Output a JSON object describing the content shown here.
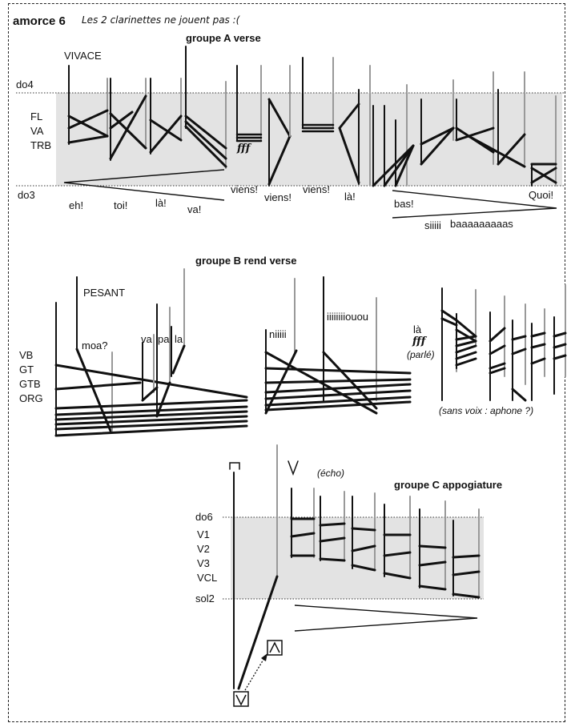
{
  "header": {
    "title": "amorce 6",
    "note": "Les 2 clarinettes ne jouent pas :("
  },
  "group_a": {
    "title": "groupe A verse",
    "tempo": "VIVACE",
    "pitch_high": "do4",
    "pitch_low": "do3",
    "instruments": [
      "FL",
      "VA",
      "TRB"
    ],
    "dynamic": "fff",
    "words": [
      "eh!",
      "toi!",
      "là!",
      "va!",
      "viens!",
      "viens!",
      "viens!",
      "là!",
      "bas!",
      "Quoi!",
      "siiiii",
      "baaaaaaaaas"
    ]
  },
  "group_b": {
    "title": "groupe B rend verse",
    "tempo": "PESANT",
    "instruments": [
      "VB",
      "GT",
      "GTB",
      "ORG"
    ],
    "words": [
      "moa?",
      "va",
      "pa",
      "la",
      "niiiii",
      "iiiiiiiiouou",
      "là"
    ],
    "dynamic": "fff",
    "spoken": "(parlé)",
    "voiceless": "(sans voix : aphone ?)"
  },
  "group_c": {
    "title": "groupe C appogiature",
    "pitch_high": "do6",
    "pitch_low": "sol2",
    "instruments": [
      "V1",
      "V2",
      "V3",
      "VCL"
    ],
    "echo": "(écho)"
  }
}
